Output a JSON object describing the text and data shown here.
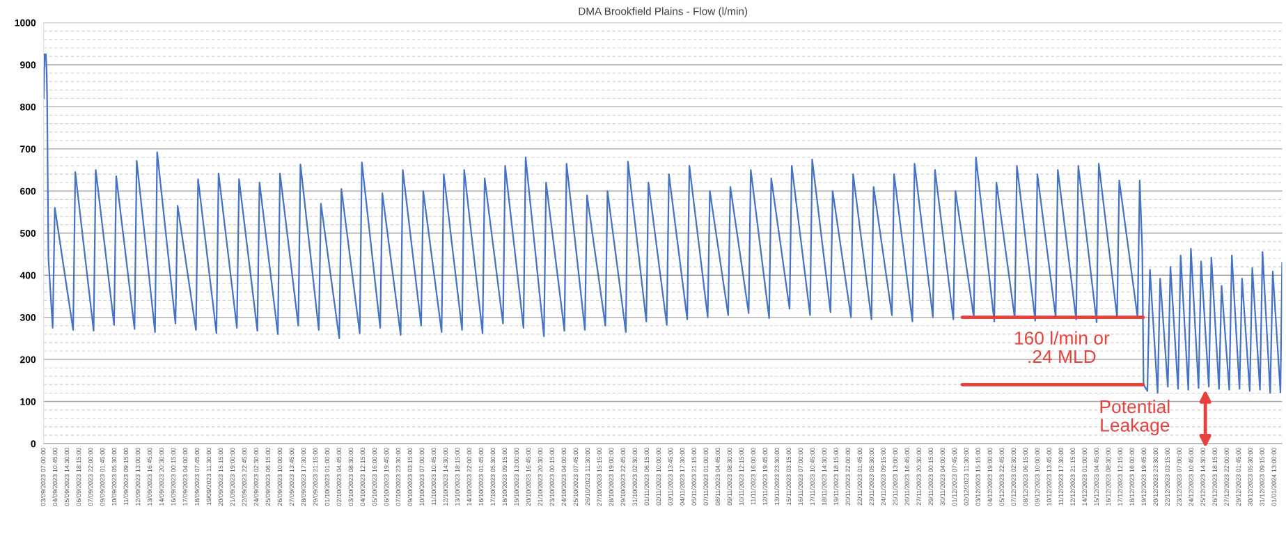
{
  "chart_data": {
    "type": "line",
    "title": "DMA Brookfield Plains - Flow (l/min)",
    "xlim": [
      "2023-09-03T07:00",
      "2024-01-02T07:00"
    ],
    "ylim": [
      0,
      1000
    ],
    "yticks": [
      0,
      {
        "value": 20,
        "label": null
      },
      {
        "value": 40,
        "label": null
      },
      {
        "value": 60,
        "label": null
      },
      {
        "value": 80,
        "label": null
      },
      100,
      {
        "value": 120,
        "label": null
      },
      {
        "value": 140,
        "label": null
      },
      {
        "value": 160,
        "label": null
      },
      {
        "value": 180,
        "label": null
      },
      200,
      {
        "value": 220,
        "label": null
      },
      {
        "value": 240,
        "label": null
      },
      {
        "value": 260,
        "label": null
      },
      {
        "value": 280,
        "label": null
      },
      300,
      {
        "value": 320,
        "label": null
      },
      {
        "value": 340,
        "label": null
      },
      {
        "value": 360,
        "label": null
      },
      {
        "value": 380,
        "label": null
      },
      400,
      {
        "value": 420,
        "label": null
      },
      {
        "value": 440,
        "label": null
      },
      {
        "value": 460,
        "label": null
      },
      {
        "value": 480,
        "label": null
      },
      500,
      {
        "value": 520,
        "label": null
      },
      {
        "value": 540,
        "label": null
      },
      {
        "value": 560,
        "label": null
      },
      {
        "value": 580,
        "label": null
      },
      600,
      {
        "value": 620,
        "label": null
      },
      {
        "value": 640,
        "label": null
      },
      {
        "value": 660,
        "label": null
      },
      {
        "value": 680,
        "label": null
      },
      700,
      {
        "value": 720,
        "label": null
      },
      {
        "value": 740,
        "label": null
      },
      {
        "value": 760,
        "label": null
      },
      {
        "value": 780,
        "label": null
      },
      800,
      {
        "value": 820,
        "label": null
      },
      {
        "value": 840,
        "label": null
      },
      {
        "value": 860,
        "label": null
      },
      {
        "value": 880,
        "label": null
      },
      900,
      {
        "value": 920,
        "label": null
      },
      {
        "value": 940,
        "label": null
      },
      {
        "value": 960,
        "label": null
      },
      {
        "value": 980,
        "label": null
      },
      1000
    ],
    "xticks": [
      {
        "value": "2023-09-03T07:00",
        "label": "03/09/2023 07:00:00"
      },
      {
        "value": "2023-09-04T10:45",
        "label": "04/09/2023 10:45:00"
      },
      {
        "value": "2023-09-05T14:30",
        "label": "05/09/2023 14:30:00"
      },
      {
        "value": "2023-09-06T18:15",
        "label": "06/09/2023 18:15:00"
      },
      {
        "value": "2023-09-07T22:00",
        "label": "07/09/2023 22:00:00"
      },
      {
        "value": "2023-09-09T01:45",
        "label": "09/09/2023 01:45:00"
      },
      {
        "value": "2023-09-10T05:30",
        "label": "10/09/2023 05:30:00"
      },
      {
        "value": "2023-09-11T09:15",
        "label": "11/09/2023 09:15:00"
      },
      {
        "value": "2023-09-12T13:00",
        "label": "12/09/2023 13:00:00"
      },
      {
        "value": "2023-09-13T16:45",
        "label": "13/09/2023 16:45:00"
      },
      {
        "value": "2023-09-14T20:30",
        "label": "14/09/2023 20:30:00"
      },
      {
        "value": "2023-09-16T00:15",
        "label": "16/09/2023 00:15:00"
      },
      {
        "value": "2023-09-17T04:00",
        "label": "17/09/2023 04:00:00"
      },
      {
        "value": "2023-09-18T07:45",
        "label": "18/09/2023 07:45:00"
      },
      {
        "value": "2023-09-19T11:30",
        "label": "19/09/2023 11:30:00"
      },
      {
        "value": "2023-09-20T15:15",
        "label": "20/09/2023 15:15:00"
      },
      {
        "value": "2023-09-21T19:00",
        "label": "21/09/2023 19:00:00"
      },
      {
        "value": "2023-09-22T22:45",
        "label": "22/09/2023 22:45:00"
      },
      {
        "value": "2023-09-24T02:30",
        "label": "24/09/2023 02:30:00"
      },
      {
        "value": "2023-09-25T06:15",
        "label": "25/09/2023 06:15:00"
      },
      {
        "value": "2023-09-26T10:00",
        "label": "26/09/2023 10:00:00"
      },
      {
        "value": "2023-09-27T13:45",
        "label": "27/09/2023 13:45:00"
      },
      {
        "value": "2023-09-28T17:30",
        "label": "28/09/2023 17:30:00"
      },
      {
        "value": "2023-09-29T21:15",
        "label": "29/09/2023 21:15:00"
      },
      {
        "value": "2023-10-01T01:00",
        "label": "01/10/2023 01:00:00"
      },
      {
        "value": "2023-10-02T04:45",
        "label": "02/10/2023 04:45:00"
      },
      {
        "value": "2023-10-03T08:30",
        "label": "03/10/2023 08:30:00"
      },
      {
        "value": "2023-10-04T12:15",
        "label": "04/10/2023 12:15:00"
      },
      {
        "value": "2023-10-05T16:00",
        "label": "05/10/2023 16:00:00"
      },
      {
        "value": "2023-10-06T19:45",
        "label": "06/10/2023 19:45:00"
      },
      {
        "value": "2023-10-07T23:30",
        "label": "07/10/2023 23:30:00"
      },
      {
        "value": "2023-10-09T03:15",
        "label": "09/10/2023 03:15:00"
      },
      {
        "value": "2023-10-10T07:00",
        "label": "10/10/2023 07:00:00"
      },
      {
        "value": "2023-10-11T10:45",
        "label": "11/10/2023 10:45:00"
      },
      {
        "value": "2023-10-12T14:30",
        "label": "12/10/2023 14:30:00"
      },
      {
        "value": "2023-10-13T18:15",
        "label": "13/10/2023 18:15:00"
      },
      {
        "value": "2023-10-14T22:00",
        "label": "14/10/2023 22:00:00"
      },
      {
        "value": "2023-10-16T01:45",
        "label": "16/10/2023 01:45:00"
      },
      {
        "value": "2023-10-17T05:30",
        "label": "17/10/2023 05:30:00"
      },
      {
        "value": "2023-10-18T09:15",
        "label": "18/10/2023 09:15:00"
      },
      {
        "value": "2023-10-19T13:00",
        "label": "19/10/2023 13:00:00"
      },
      {
        "value": "2023-10-20T16:45",
        "label": "20/10/2023 16:45:00"
      },
      {
        "value": "2023-10-21T20:30",
        "label": "21/10/2023 20:30:00"
      },
      {
        "value": "2023-10-23T00:15",
        "label": "23/10/2023 00:15:00"
      },
      {
        "value": "2023-10-24T04:00",
        "label": "24/10/2023 04:00:00"
      },
      {
        "value": "2023-10-25T07:45",
        "label": "25/10/2023 07:45:00"
      },
      {
        "value": "2023-10-26T11:30",
        "label": "26/10/2023 11:30:00"
      },
      {
        "value": "2023-10-27T15:15",
        "label": "27/10/2023 15:15:00"
      },
      {
        "value": "2023-10-28T19:00",
        "label": "28/10/2023 19:00:00"
      },
      {
        "value": "2023-10-29T22:45",
        "label": "29/10/2023 22:45:00"
      },
      {
        "value": "2023-10-31T02:30",
        "label": "31/10/2023 02:30:00"
      },
      {
        "value": "2023-11-01T06:15",
        "label": "01/11/2023 06:15:00"
      },
      {
        "value": "2023-11-02T10:00",
        "label": "02/11/2023 10:00:00"
      },
      {
        "value": "2023-11-03T13:45",
        "label": "03/11/2023 13:45:00"
      },
      {
        "value": "2023-11-04T17:30",
        "label": "04/11/2023 17:30:00"
      },
      {
        "value": "2023-11-05T21:15",
        "label": "05/11/2023 21:15:00"
      },
      {
        "value": "2023-11-07T01:00",
        "label": "07/11/2023 01:00:00"
      },
      {
        "value": "2023-11-08T04:45",
        "label": "08/11/2023 04:45:00"
      },
      {
        "value": "2023-11-09T08:30",
        "label": "09/11/2023 08:30:00"
      },
      {
        "value": "2023-11-10T12:15",
        "label": "10/11/2023 12:15:00"
      },
      {
        "value": "2023-11-11T16:00",
        "label": "11/11/2023 16:00:00"
      },
      {
        "value": "2023-11-12T19:45",
        "label": "12/11/2023 19:45:00"
      },
      {
        "value": "2023-11-13T23:30",
        "label": "13/11/2023 23:30:00"
      },
      {
        "value": "2023-11-15T03:15",
        "label": "15/11/2023 03:15:00"
      },
      {
        "value": "2023-11-16T07:00",
        "label": "16/11/2023 07:00:00"
      },
      {
        "value": "2023-11-17T10:45",
        "label": "17/11/2023 10:45:00"
      },
      {
        "value": "2023-11-18T14:30",
        "label": "18/11/2023 14:30:00"
      },
      {
        "value": "2023-11-19T18:15",
        "label": "19/11/2023 18:15:00"
      },
      {
        "value": "2023-11-20T22:00",
        "label": "20/11/2023 22:00:00"
      },
      {
        "value": "2023-11-22T01:45",
        "label": "22/11/2023 01:45:00"
      },
      {
        "value": "2023-11-23T05:30",
        "label": "23/11/2023 05:30:00"
      },
      {
        "value": "2023-11-24T09:15",
        "label": "24/11/2023 09:15:00"
      },
      {
        "value": "2023-11-25T13:00",
        "label": "25/11/2023 13:00:00"
      },
      {
        "value": "2023-11-26T16:45",
        "label": "26/11/2023 16:45:00"
      },
      {
        "value": "2023-11-27T20:30",
        "label": "27/11/2023 20:30:00"
      },
      {
        "value": "2023-11-29T00:15",
        "label": "29/11/2023 00:15:00"
      },
      {
        "value": "2023-11-30T04:00",
        "label": "30/11/2023 04:00:00"
      },
      {
        "value": "2023-12-01T07:45",
        "label": "01/12/2023 07:45:00"
      },
      {
        "value": "2023-12-02T11:30",
        "label": "02/12/2023 11:30:00"
      },
      {
        "value": "2023-12-03T15:15",
        "label": "03/12/2023 15:15:00"
      },
      {
        "value": "2023-12-04T19:00",
        "label": "04/12/2023 19:00:00"
      },
      {
        "value": "2023-12-05T22:45",
        "label": "05/12/2023 22:45:00"
      },
      {
        "value": "2023-12-07T02:30",
        "label": "07/12/2023 02:30:00"
      },
      {
        "value": "2023-12-08T06:15",
        "label": "08/12/2023 06:15:00"
      },
      {
        "value": "2023-12-09T10:00",
        "label": "09/12/2023 10:00:00"
      },
      {
        "value": "2023-12-10T13:45",
        "label": "10/12/2023 13:45:00"
      },
      {
        "value": "2023-12-11T17:30",
        "label": "11/12/2023 17:30:00"
      },
      {
        "value": "2023-12-12T21:15",
        "label": "12/12/2023 21:15:00"
      },
      {
        "value": "2023-12-14T01:00",
        "label": "14/12/2023 01:00:00"
      },
      {
        "value": "2023-12-15T04:45",
        "label": "15/12/2023 04:45:00"
      },
      {
        "value": "2023-12-16T08:30",
        "label": "16/12/2023 08:30:00"
      },
      {
        "value": "2023-12-17T12:15",
        "label": "17/12/2023 12:15:00"
      },
      {
        "value": "2023-12-18T16:00",
        "label": "18/12/2023 16:00:00"
      },
      {
        "value": "2023-12-19T19:45",
        "label": "19/12/2023 19:45:00"
      },
      {
        "value": "2023-12-20T23:30",
        "label": "20/12/2023 23:30:00"
      },
      {
        "value": "2023-12-22T03:15",
        "label": "22/12/2023 03:15:00"
      },
      {
        "value": "2023-12-23T07:00",
        "label": "23/12/2023 07:00:00"
      },
      {
        "value": "2023-12-24T10:45",
        "label": "24/12/2023 10:45:00"
      },
      {
        "value": "2023-12-25T14:30",
        "label": "25/12/2023 14:30:00"
      },
      {
        "value": "2023-12-26T18:15",
        "label": "26/12/2023 18:15:00"
      },
      {
        "value": "2023-12-27T22:00",
        "label": "27/12/2023 22:00:00"
      },
      {
        "value": "2023-12-29T01:45",
        "label": "29/12/2023 01:45:00"
      },
      {
        "value": "2023-12-30T05:30",
        "label": "30/12/2023 05:30:00"
      },
      {
        "value": "2023-12-31T09:15",
        "label": "31/12/2023 09:15:00"
      },
      {
        "value": "2024-01-01T13:00",
        "label": "01/01/2024 13:00:00"
      }
    ],
    "grid": "y",
    "series": [
      {
        "color": "#4472c4",
        "x": [
          "2023-09-03T07:00",
          "2023-09-03T09:00",
          "2023-09-03T12:00",
          "2023-09-03T14:00",
          "2023-09-03T15:00",
          "2023-09-03T18:00",
          "2023-09-04T04:00",
          "2023-09-04T09:00",
          "2023-09-06T04:00",
          "2023-09-06T09:00",
          "2023-09-08T04:00",
          "2023-09-08T09:00",
          "2023-09-10T04:00",
          "2023-09-10T09:00",
          "2023-09-12T04:00",
          "2023-09-12T09:00",
          "2023-09-14T04:00",
          "2023-09-14T09:00",
          "2023-09-16T04:00",
          "2023-09-16T09:00",
          "2023-09-18T04:00",
          "2023-09-18T09:00",
          "2023-09-20T04:00",
          "2023-09-20T09:00",
          "2023-09-22T04:00",
          "2023-09-22T09:00",
          "2023-09-24T04:00",
          "2023-09-24T09:00",
          "2023-09-26T04:00",
          "2023-09-26T09:00",
          "2023-09-28T04:00",
          "2023-09-28T09:00",
          "2023-09-30T04:00",
          "2023-09-30T09:00",
          "2023-10-02T04:00",
          "2023-10-02T09:00",
          "2023-10-04T04:00",
          "2023-10-04T09:00",
          "2023-10-06T04:00",
          "2023-10-06T09:00",
          "2023-10-08T04:00",
          "2023-10-08T09:00",
          "2023-10-10T04:00",
          "2023-10-10T09:00",
          "2023-10-12T04:00",
          "2023-10-12T09:00",
          "2023-10-14T04:00",
          "2023-10-14T09:00",
          "2023-10-16T04:00",
          "2023-10-16T09:00",
          "2023-10-18T04:00",
          "2023-10-18T09:00",
          "2023-10-20T04:00",
          "2023-10-20T09:00",
          "2023-10-22T04:00",
          "2023-10-22T09:00",
          "2023-10-24T04:00",
          "2023-10-24T09:00",
          "2023-10-26T04:00",
          "2023-10-26T09:00",
          "2023-10-28T04:00",
          "2023-10-28T09:00",
          "2023-10-30T04:00",
          "2023-10-30T09:00",
          "2023-11-01T04:00",
          "2023-11-01T09:00",
          "2023-11-03T04:00",
          "2023-11-03T09:00",
          "2023-11-05T04:00",
          "2023-11-05T09:00",
          "2023-11-07T04:00",
          "2023-11-07T09:00",
          "2023-11-09T04:00",
          "2023-11-09T09:00",
          "2023-11-11T04:00",
          "2023-11-11T09:00",
          "2023-11-13T04:00",
          "2023-11-13T09:00",
          "2023-11-15T04:00",
          "2023-11-15T09:00",
          "2023-11-17T04:00",
          "2023-11-17T09:00",
          "2023-11-19T04:00",
          "2023-11-19T09:00",
          "2023-11-21T04:00",
          "2023-11-21T09:00",
          "2023-11-23T04:00",
          "2023-11-23T09:00",
          "2023-11-25T04:00",
          "2023-11-25T09:00",
          "2023-11-27T04:00",
          "2023-11-27T09:00",
          "2023-11-29T04:00",
          "2023-11-29T09:00",
          "2023-12-01T04:00",
          "2023-12-01T09:00",
          "2023-12-03T04:00",
          "2023-12-03T09:00",
          "2023-12-05T04:00",
          "2023-12-05T09:00",
          "2023-12-07T04:00",
          "2023-12-07T09:00",
          "2023-12-09T04:00",
          "2023-12-09T09:00",
          "2023-12-11T04:00",
          "2023-12-11T09:00",
          "2023-12-13T04:00",
          "2023-12-13T09:00",
          "2023-12-15T04:00",
          "2023-12-15T09:00",
          "2023-12-17T04:00",
          "2023-12-17T09:00",
          "2023-12-19T04:00",
          "2023-12-19T09:00",
          "2023-12-19T15:00",
          "2023-12-19T18:00",
          "2023-12-20T03:00",
          "2023-12-20T09:00",
          "2023-12-21T03:00",
          "2023-12-21T09:00",
          "2023-12-22T03:00",
          "2023-12-22T09:00",
          "2023-12-23T03:00",
          "2023-12-23T09:00",
          "2023-12-24T03:00",
          "2023-12-24T09:00",
          "2023-12-25T03:00",
          "2023-12-25T09:00",
          "2023-12-26T03:00",
          "2023-12-26T09:00",
          "2023-12-27T03:00",
          "2023-12-27T09:00",
          "2023-12-28T03:00",
          "2023-12-28T09:00",
          "2023-12-29T03:00",
          "2023-12-29T09:00",
          "2023-12-30T03:00",
          "2023-12-30T09:00",
          "2023-12-31T03:00",
          "2023-12-31T09:00",
          "2024-01-01T03:00",
          "2024-01-01T09:00",
          "2024-01-02T03:00",
          "2024-01-02T07:00"
        ],
        "values": [
          820,
          925,
          925,
          880,
          820,
          440,
          275,
          560,
          270,
          645,
          268,
          650,
          282,
          635,
          272,
          672,
          265,
          692,
          285,
          565,
          270,
          628,
          262,
          642,
          275,
          628,
          268,
          620,
          260,
          642,
          280,
          663,
          270,
          570,
          250,
          605,
          262,
          668,
          275,
          595,
          258,
          650,
          280,
          600,
          265,
          640,
          270,
          650,
          262,
          630,
          285,
          660,
          275,
          680,
          255,
          620,
          268,
          665,
          270,
          590,
          280,
          600,
          265,
          670,
          290,
          620,
          282,
          640,
          295,
          660,
          300,
          600,
          305,
          610,
          310,
          650,
          298,
          630,
          320,
          660,
          305,
          675,
          312,
          600,
          300,
          640,
          295,
          610,
          305,
          640,
          290,
          665,
          300,
          650,
          295,
          600,
          300,
          680,
          290,
          620,
          298,
          660,
          292,
          640,
          300,
          650,
          295,
          660,
          288,
          665,
          300,
          625,
          300,
          625,
          460,
          140,
          125,
          413,
          120,
          392,
          135,
          420,
          130,
          447,
          128,
          463,
          132,
          433,
          135,
          442,
          130,
          375,
          128,
          447,
          130,
          392,
          125,
          417,
          128,
          455,
          120,
          409,
          122,
          430
        ]
      },
      {
        "color": "#e8413c",
        "x": [
          "2023-12-02T01:00",
          "2023-12-19T17:00"
        ],
        "values": [
          300,
          300
        ]
      },
      {
        "color": "#e8413c",
        "x": [
          "2023-12-02T01:00",
          "2023-12-19T17:00"
        ],
        "values": [
          140,
          140
        ]
      }
    ],
    "annotations": [
      "160 l/min or\n.24 MLD",
      "Potential\nLeakage"
    ]
  }
}
